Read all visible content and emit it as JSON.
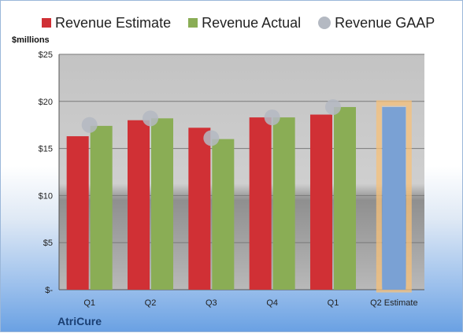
{
  "chart_data": {
    "type": "bar",
    "ylabel": "$millions",
    "ylim": [
      0,
      25
    ],
    "yticks": [
      "$-",
      "$5",
      "$10",
      "$15",
      "$20",
      "$25"
    ],
    "categories": [
      "Q1",
      "Q2",
      "Q3",
      "Q4",
      "Q1",
      "Q2 Estimate"
    ],
    "series": [
      {
        "name": "Revenue Estimate",
        "color": "#d03035",
        "values": [
          16.3,
          18.0,
          17.2,
          18.3,
          18.6,
          null
        ]
      },
      {
        "name": "Revenue Actual",
        "color": "#8aad55",
        "values": [
          17.4,
          18.2,
          16.0,
          18.3,
          19.4,
          null
        ]
      },
      {
        "name": "Revenue GAAP",
        "color": "#b4b9c2",
        "values": [
          17.5,
          18.2,
          16.1,
          18.3,
          19.4,
          null
        ]
      }
    ],
    "projection": {
      "category": "Q2 Estimate",
      "value": 19.4,
      "color": "#7aa1d4",
      "highlight": "#f5c07a"
    },
    "grid": true,
    "legend": "top"
  },
  "company": "AtriCure"
}
